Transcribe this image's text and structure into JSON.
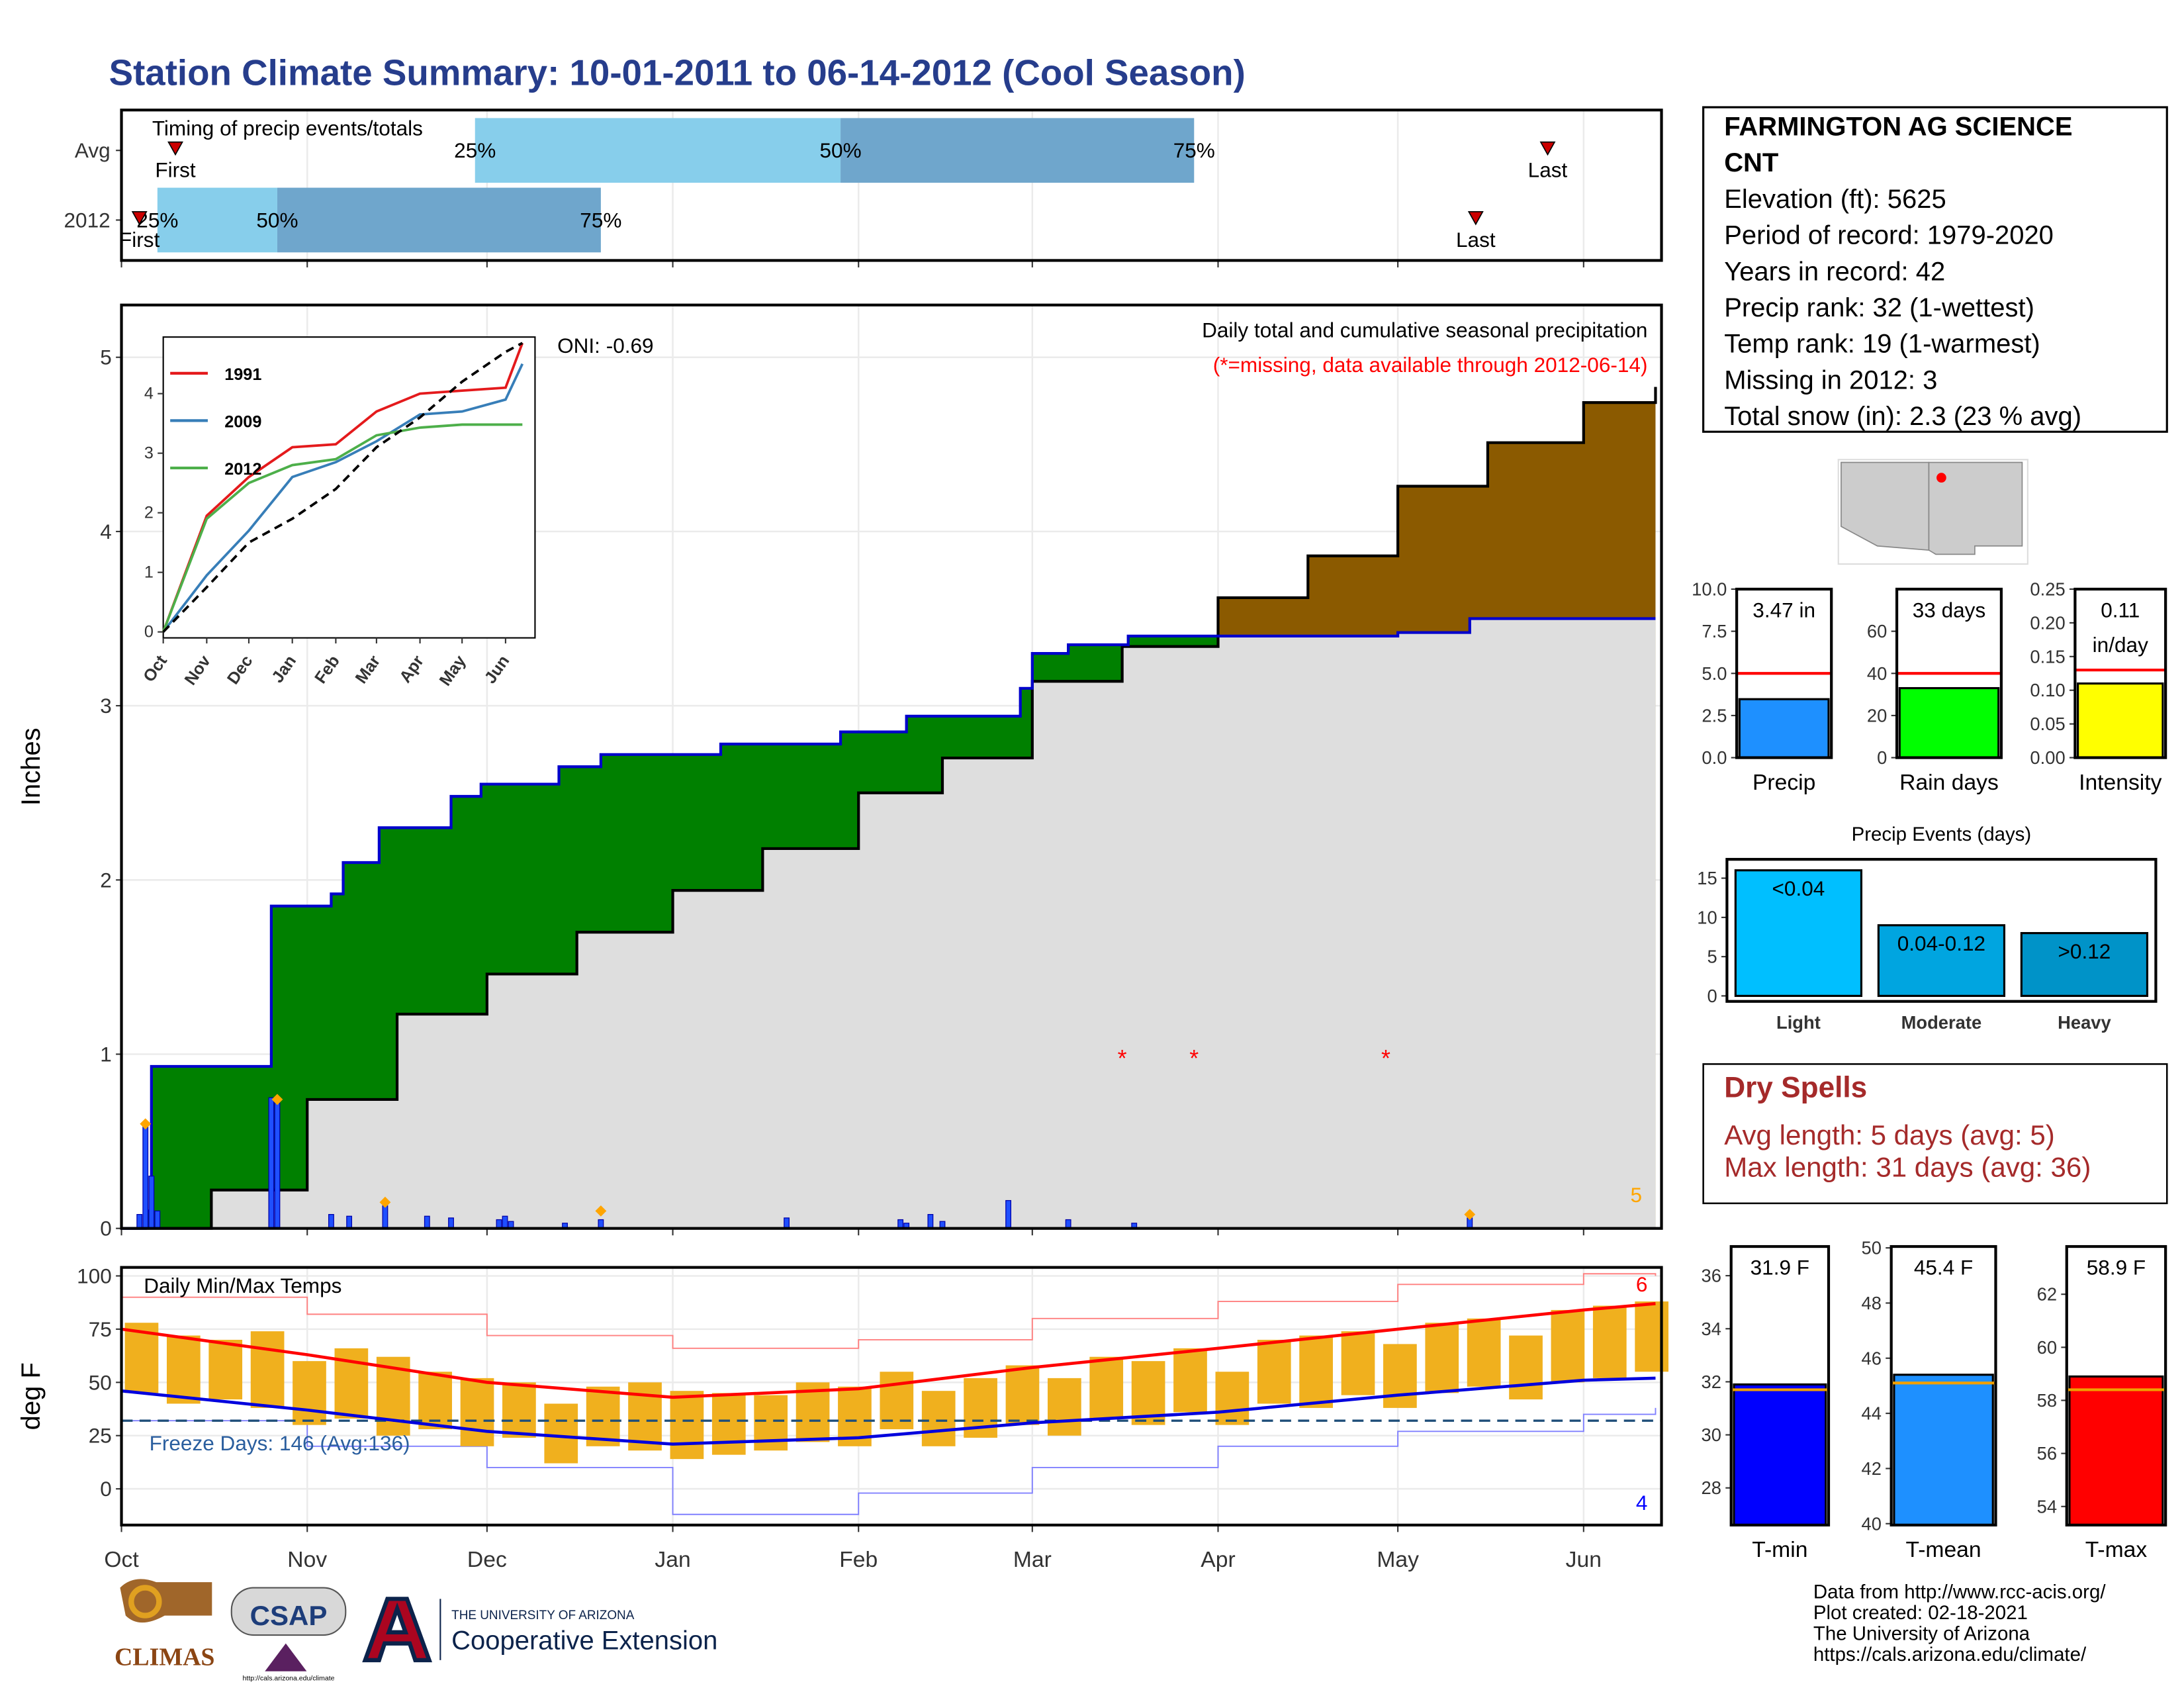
{
  "title": "Station Climate Summary: 10-01-2011 to 06-14-2012 (Cool Season)",
  "station": {
    "lines": [
      "FARMINGTON AG SCIENCE",
      "CNT",
      "Elevation (ft): 5625",
      "Period of record: 1979-2020",
      "Years in record: 42",
      "Precip rank: 32 (1-wettest)",
      "Temp rank: 19 (1-warmest)",
      "Missing in 2012: 3",
      "Total snow (in): 2.3 (23 % avg)"
    ]
  },
  "dry_spells": {
    "title": "Dry Spells",
    "lines": [
      "Avg length: 5 days (avg: 5)",
      "Max length: 31 days (avg: 36)"
    ]
  },
  "footer": {
    "lines": [
      "Data from http://www.rcc-acis.org/",
      "Plot created: 02-18-2021",
      "The University of Arizona",
      "https://cals.arizona.edu/climate/"
    ]
  },
  "logos": {
    "climas": "CLIMAS",
    "csap": "CSAP",
    "csap_url": "http://cals.arizona.edu/climate",
    "ua": "THE UNIVERSITY OF ARIZONA",
    "extension": "Cooperative Extension"
  },
  "chart_data": [
    {
      "type": "timing",
      "title": "Timing of precip events/totals",
      "xlim": [
        0,
        257
      ],
      "labels": {
        "first": "First",
        "q25": "25%",
        "q50": "50%",
        "q75": "75%",
        "last": "Last"
      },
      "colors": [
        "#87ceeb",
        "#6fa6cc"
      ],
      "marker_color": "#cc0000",
      "series": [
        {
          "name": "Avg",
          "first": 9,
          "q25": 59,
          "q50": 120,
          "q75": 179,
          "last": 238
        },
        {
          "name": "2012",
          "first": 3,
          "q25": 6,
          "q50": 26,
          "q75": 80,
          "last": 226
        }
      ]
    },
    {
      "type": "cumulative",
      "title": "Daily total and cumulative seasonal precipitation",
      "subtitle": "(*=missing, data available through 2012-06-14)",
      "oni": "ONI: -0.69",
      "count": 5,
      "ylabel": "Inches",
      "xlim": [
        0,
        257
      ],
      "ylim": [
        0,
        5.3
      ],
      "yticks": [
        0,
        1,
        2,
        3,
        4,
        5
      ],
      "above_color": "#008000",
      "below_color": "#8b5a00",
      "base_color": "#dedede",
      "series": [
        {
          "color": "#000000",
          "x": [
            0,
            15,
            31,
            46,
            61,
            76,
            92,
            107,
            123,
            137,
            152,
            167,
            183,
            198,
            213,
            228,
            244,
            256
          ],
          "values": [
            0,
            0.22,
            0.74,
            1.23,
            1.46,
            1.7,
            1.94,
            2.18,
            2.5,
            2.7,
            3.14,
            3.34,
            3.62,
            3.86,
            4.26,
            4.51,
            4.74,
            4.83
          ]
        },
        {
          "color": "#0000cc",
          "x": [
            0,
            4,
            5,
            24,
            25,
            35,
            37,
            43,
            55,
            60,
            73,
            80,
            100,
            120,
            131,
            150,
            152,
            158,
            168,
            213,
            225,
            256
          ],
          "values": [
            0,
            0.1,
            0.93,
            0.93,
            1.85,
            1.92,
            2.1,
            2.3,
            2.48,
            2.55,
            2.65,
            2.72,
            2.78,
            2.85,
            2.94,
            3.1,
            3.3,
            3.35,
            3.4,
            3.42,
            3.5,
            3.5
          ]
        }
      ],
      "daily": {
        "color": "#1f4fff",
        "x": [
          3,
          4,
          5,
          6,
          25,
          26,
          35,
          38,
          44,
          51,
          55,
          63,
          64,
          65,
          74,
          80,
          111,
          130,
          131,
          135,
          137,
          148,
          158,
          169,
          225
        ],
        "values": [
          0.08,
          0.6,
          0.3,
          0.1,
          0.75,
          0.72,
          0.08,
          0.07,
          0.13,
          0.07,
          0.06,
          0.05,
          0.07,
          0.04,
          0.03,
          0.05,
          0.06,
          0.05,
          0.03,
          0.08,
          0.04,
          0.16,
          0.05,
          0.03,
          0.06
        ]
      },
      "snow": {
        "color": "#ffa500",
        "x": [
          4,
          26,
          44,
          80,
          225
        ],
        "values": [
          0.6,
          0.74,
          0.15,
          0.1,
          0.08
        ]
      },
      "missing": {
        "label": "*",
        "color": "#ff0000",
        "x": [
          167,
          179,
          211
        ],
        "values": [
          1,
          1,
          1
        ]
      }
    },
    {
      "type": "line",
      "xlim": [
        0,
        265
      ],
      "ylim": [
        -0.1,
        4.95
      ],
      "yticks": [
        0,
        1,
        2,
        3,
        4
      ],
      "xticks": [
        {
          "value": 0,
          "label": "Oct"
        },
        {
          "value": 31,
          "label": "Nov"
        },
        {
          "value": 61,
          "label": "Dec"
        },
        {
          "value": 92,
          "label": "Jan"
        },
        {
          "value": 123,
          "label": "Feb"
        },
        {
          "value": 152,
          "label": "Mar"
        },
        {
          "value": 183,
          "label": "Apr"
        },
        {
          "value": 213,
          "label": "May"
        },
        {
          "value": 244,
          "label": "Jun"
        }
      ],
      "x": [
        0,
        31,
        61,
        92,
        123,
        152,
        183,
        213,
        244,
        256
      ],
      "series": [
        {
          "name": "1991",
          "color": "#e41a1c",
          "values": [
            0,
            1.95,
            2.6,
            3.1,
            3.15,
            3.7,
            4.0,
            4.05,
            4.1,
            4.85
          ]
        },
        {
          "name": "2009",
          "color": "#377eb8",
          "values": [
            0,
            0.95,
            1.7,
            2.6,
            2.85,
            3.2,
            3.65,
            3.7,
            3.9,
            4.5
          ]
        },
        {
          "name": "2012",
          "color": "#4daf4a",
          "values": [
            0,
            1.9,
            2.5,
            2.8,
            2.9,
            3.3,
            3.43,
            3.48,
            3.48,
            3.48
          ]
        },
        {
          "color": "#000000",
          "dashed": true,
          "values": [
            0,
            0.75,
            1.5,
            1.9,
            2.4,
            3.1,
            3.6,
            4.2,
            4.7,
            4.85
          ]
        }
      ]
    },
    {
      "type": "temps",
      "title": "Daily Min/Max Temps",
      "freeze_label": "Freeze Days: 146 (Avg:136)",
      "ylabel": "deg F",
      "high_count": 6,
      "low_count": 4,
      "freeze": 32,
      "xlim": [
        0,
        257
      ],
      "ylim": [
        -17,
        104
      ],
      "yticks": [
        0,
        25,
        50,
        75,
        100
      ],
      "xticks": [
        {
          "value": 0,
          "label": "Oct"
        },
        {
          "value": 31,
          "label": "Nov"
        },
        {
          "value": 61,
          "label": "Dec"
        },
        {
          "value": 92,
          "label": "Jan"
        },
        {
          "value": 123,
          "label": "Feb"
        },
        {
          "value": 152,
          "label": "Mar"
        },
        {
          "value": 183,
          "label": "Apr"
        },
        {
          "value": 213,
          "label": "May"
        },
        {
          "value": 244,
          "label": "Jun"
        }
      ],
      "bar_color": "#f0b01e",
      "x": [
        0,
        7,
        14,
        21,
        28,
        35,
        42,
        49,
        56,
        63,
        70,
        77,
        84,
        91,
        98,
        105,
        112,
        119,
        126,
        133,
        140,
        147,
        154,
        161,
        168,
        175,
        182,
        189,
        196,
        203,
        210,
        217,
        224,
        231,
        238,
        245,
        252
      ],
      "high": [
        78,
        72,
        70,
        74,
        60,
        66,
        62,
        55,
        52,
        50,
        40,
        48,
        50,
        46,
        45,
        44,
        50,
        48,
        55,
        46,
        52,
        58,
        52,
        62,
        60,
        66,
        55,
        70,
        72,
        74,
        68,
        78,
        80,
        72,
        84,
        86,
        88
      ],
      "low": [
        45,
        40,
        42,
        38,
        30,
        33,
        25,
        28,
        20,
        24,
        12,
        20,
        18,
        14,
        16,
        18,
        22,
        20,
        28,
        20,
        24,
        30,
        25,
        33,
        30,
        36,
        30,
        40,
        38,
        44,
        38,
        45,
        48,
        42,
        50,
        52,
        55
      ],
      "normal_x": [
        0,
        31,
        61,
        92,
        123,
        152,
        183,
        213,
        244,
        256
      ],
      "normal_high": [
        75,
        63,
        50,
        43,
        47,
        57,
        66,
        75,
        84,
        87
      ],
      "normal_low": [
        46,
        37,
        27,
        21,
        24,
        31,
        36,
        44,
        51,
        52
      ],
      "record_high": [
        90,
        82,
        72,
        66,
        70,
        80,
        88,
        96,
        101,
        100
      ],
      "record_low": [
        32,
        20,
        10,
        -12,
        -2,
        10,
        20,
        27,
        35,
        38
      ]
    },
    {
      "type": "gauge",
      "xlabel": "Precip",
      "value": 3.47,
      "value_label": "3.47 in",
      "avg": 5,
      "color": "#1e90ff",
      "avg_color": "#ff0000",
      "ylim": [
        0,
        10
      ],
      "yticks": [
        {
          "value": 0,
          "label": "0.0"
        },
        2.5,
        {
          "value": 5,
          "label": "5.0"
        },
        7.5,
        {
          "value": 10,
          "label": "10.0"
        }
      ]
    },
    {
      "type": "gauge",
      "xlabel": "Rain days",
      "value": 33,
      "value_label": "33 days",
      "avg": 40,
      "color": "#00ff00",
      "avg_color": "#ff0000",
      "ylim": [
        0,
        80
      ],
      "yticks": [
        0,
        20,
        40,
        60
      ]
    },
    {
      "type": "gauge",
      "xlabel": "Intensity",
      "value": 0.11,
      "value_label": "0.11",
      "unit_label": "in/day",
      "avg": 0.13,
      "color": "#ffff00",
      "avg_color": "#ff0000",
      "ylim": [
        0,
        0.25
      ],
      "yticks": [
        {
          "value": 0,
          "label": "0.00"
        },
        0.05,
        {
          "value": 0.1,
          "label": "0.10"
        },
        0.15,
        {
          "value": 0.2,
          "label": "0.20"
        },
        0.25
      ]
    },
    {
      "type": "bar",
      "title": "Precip Events (days)",
      "categories": [
        "Light",
        "Moderate",
        "Heavy"
      ],
      "bar_labels": [
        "<0.04",
        "0.04-0.12",
        ">0.12"
      ],
      "values": [
        16,
        9,
        8
      ],
      "colors": [
        "#00bfff",
        "#00a5e0",
        "#0093c8"
      ],
      "ylim": [
        -0.7,
        17.4
      ],
      "yticks": [
        0,
        5,
        10,
        15
      ]
    },
    {
      "type": "gauge",
      "xlabel": "T-min",
      "value": 31.9,
      "value_label": "31.9 F",
      "avg": 31.7,
      "color": "#0000ff",
      "avg_color": "#f0a000",
      "ylim": [
        26.6,
        37.1
      ],
      "yticks": [
        28,
        30,
        32,
        34,
        36
      ]
    },
    {
      "type": "gauge",
      "xlabel": "T-mean",
      "value": 45.4,
      "value_label": "45.4 F",
      "avg": 45.1,
      "color": "#1e90ff",
      "avg_color": "#f0a000",
      "ylim": [
        39.95,
        50.05
      ],
      "yticks": [
        40,
        42,
        44,
        46,
        48,
        50
      ]
    },
    {
      "type": "gauge",
      "xlabel": "T-max",
      "value": 58.9,
      "value_label": "58.9 F",
      "avg": 58.4,
      "color": "#ff0000",
      "avg_color": "#f0a000",
      "ylim": [
        53.3,
        63.8
      ],
      "yticks": [
        54,
        56,
        58,
        60,
        62
      ]
    }
  ]
}
